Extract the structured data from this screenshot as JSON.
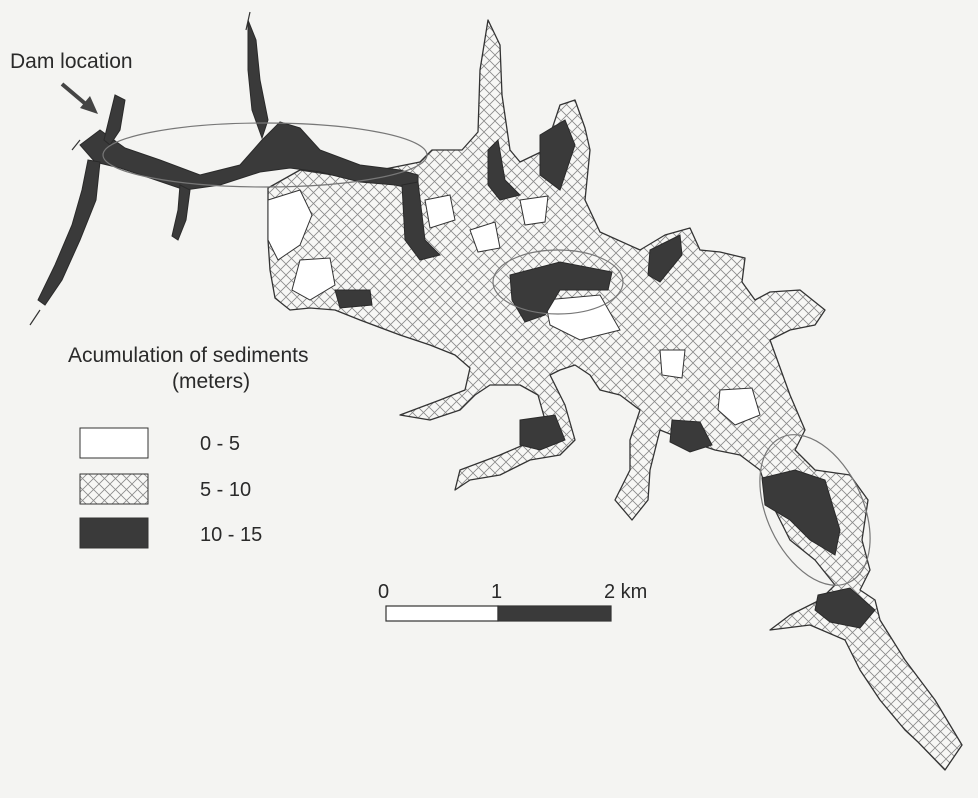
{
  "annotation": {
    "dam_label": "Dam location"
  },
  "legend": {
    "title_line1": "Acumulation of sediments",
    "title_line2": "(meters)",
    "items": [
      {
        "label": "0 - 5",
        "fill": "white"
      },
      {
        "label": "5 - 10",
        "fill": "crosshatch"
      },
      {
        "label": "10 - 15",
        "fill": "dark"
      }
    ]
  },
  "scale_bar": {
    "tick_0": "0",
    "tick_1": "1",
    "tick_2": "2 km"
  },
  "colors": {
    "background": "#f4f4f2",
    "dark_fill": "#3a3a3a",
    "hatch_line": "#8a8a8a",
    "outline": "#333333"
  }
}
